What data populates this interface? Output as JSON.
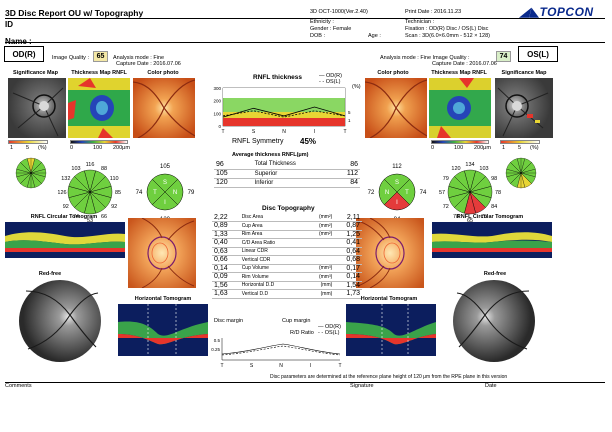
{
  "header": {
    "title": "3D Disc Report OU w/ Topography",
    "software": "3D OCT-1000(Ver.2.40)",
    "print_date": "Print Date : 2016.11.23",
    "brand": "TOPCON",
    "id_label": "ID",
    "name_label": "Name :",
    "ethnicity": "Ethnicity :",
    "gender": "Gender : Female",
    "dob": "DOB :",
    "age": "Age :",
    "technician": "Technician :",
    "fixation": "Fixation : OD(R) Disc / OS(L) Disc",
    "scan": "Scan : 3D(6.0×6.0mm - 512 × 128)"
  },
  "od": {
    "eye_label": "OD(R)",
    "quality_label": "Image Quality :",
    "quality_value": "65",
    "analysis_mode": "Analysis mode : Fine",
    "capture_date": "Capture Date : 2016.07.06"
  },
  "os": {
    "eye_label": "OS(L)",
    "quality_label": "Analysis mode : Fine Image Quality :",
    "quality_value": "74",
    "capture_date": "Capture Date : 2016.07.06"
  },
  "panel_labels": {
    "significance_map": "Significance Map",
    "thickness_map": "Thickness Map RNFL",
    "color_photo": "Color photo",
    "rnfl_circular": "RNFL Circular Tomogram",
    "red_free": "Red-free",
    "horizontal_tomogram": "Horizontal Tomogram"
  },
  "scales": {
    "significance": [
      "1",
      "5",
      "(%)"
    ],
    "thickness": [
      "0",
      "100",
      "200μm"
    ]
  },
  "rnfl_chart": {
    "title": "RNFL thickness",
    "legend_od": "OD(R)",
    "legend_os": "OS(L)",
    "y_ticks": [
      "300",
      "200",
      "100",
      "0"
    ],
    "x_ticks": [
      "T",
      "S",
      "N",
      "I",
      "T"
    ],
    "unit_right": "(%)",
    "pct_ticks": [
      "5",
      "1"
    ],
    "symmetry_label": "RNFL Symmetry",
    "symmetry_value": "45%"
  },
  "chart_data": {
    "type": "line",
    "x": [
      "T",
      "S",
      "N",
      "I",
      "T"
    ],
    "series": [
      {
        "name": "OD(R)",
        "values": [
          70,
          140,
          80,
          150,
          80
        ]
      },
      {
        "name": "OS(L)",
        "values": [
          80,
          120,
          70,
          120,
          80
        ]
      }
    ],
    "ylim": [
      0,
      300
    ],
    "title": "RNFL thickness"
  },
  "avg_thickness": {
    "title": "Average thickness RNFL(μm)",
    "rows": [
      {
        "od": "96",
        "label": "Total Thickness",
        "os": "86"
      },
      {
        "od": "105",
        "label": "Superior",
        "os": "112"
      },
      {
        "od": "120",
        "label": "Inferior",
        "os": "84"
      }
    ]
  },
  "quadrants_od": {
    "top": "105",
    "left": "74",
    "right": "79",
    "bottom": "120",
    "labels": [
      "S",
      "T",
      "N",
      "I"
    ]
  },
  "quadrants_os": {
    "top": "112",
    "left": "72",
    "right": "74",
    "bottom": "84",
    "labels": [
      "S",
      "N",
      "T",
      "I"
    ]
  },
  "clock_od": {
    "values": [
      "116",
      "88",
      "110",
      "85",
      "92",
      "66",
      "53",
      "74",
      "92",
      "126",
      "132",
      "103"
    ]
  },
  "clock_os": {
    "values": [
      "134",
      "103",
      "98",
      "78",
      "84",
      "75",
      "65",
      "78",
      "72",
      "57",
      "79",
      "120"
    ]
  },
  "disc_topography": {
    "title": "Disc Topography",
    "rows": [
      {
        "od": "2,22",
        "label": "Disc Area",
        "unit": "(mm²)",
        "os": "2,11"
      },
      {
        "od": "0,89",
        "label": "Cup Area",
        "unit": "(mm²)",
        "os": "0,87"
      },
      {
        "od": "1,33",
        "label": "Rim Area",
        "unit": "(mm²)",
        "os": "1,25"
      },
      {
        "od": "0,40",
        "label": "C/D Area Ratio",
        "unit": "",
        "os": "0,41"
      },
      {
        "od": "0,63",
        "label": "Linear CDR",
        "unit": "",
        "os": "0,64"
      },
      {
        "od": "0,66",
        "label": "Vertical CDR",
        "unit": "",
        "os": "0,68"
      },
      {
        "od": "0,14",
        "label": "Cup Volume",
        "unit": "(mm³)",
        "os": "0,17"
      },
      {
        "od": "0,09",
        "label": "Rim Volume",
        "unit": "(mm³)",
        "os": "0,14"
      },
      {
        "od": "1,56",
        "label": "Horizontal D.D",
        "unit": "(mm)",
        "os": "1,54"
      },
      {
        "od": "1,63",
        "label": "Vertical D.D",
        "unit": "(mm)",
        "os": "1,73"
      }
    ]
  },
  "rd_chart": {
    "disc_margin": "Disc margin",
    "cup_margin": "Cup margin",
    "title": "R/D Ratio",
    "legend_od": "OD(R)",
    "legend_os": "OS(L)",
    "y_ticks": [
      "0.5",
      "0.25"
    ],
    "x_ticks": [
      "T",
      "S",
      "N",
      "I",
      "T"
    ]
  },
  "footer": {
    "note": "Disc parameters are determined at the reference plane height of 120 μm from the RPE plane in this version",
    "comments": "Comments",
    "signature": "Signature",
    "date": "Date"
  },
  "colors": {
    "segment_green": "#6fcf3f",
    "segment_red": "#e43b3b",
    "fundus_orange": "#e06a1e",
    "thickness_green": "#3fae3f"
  }
}
